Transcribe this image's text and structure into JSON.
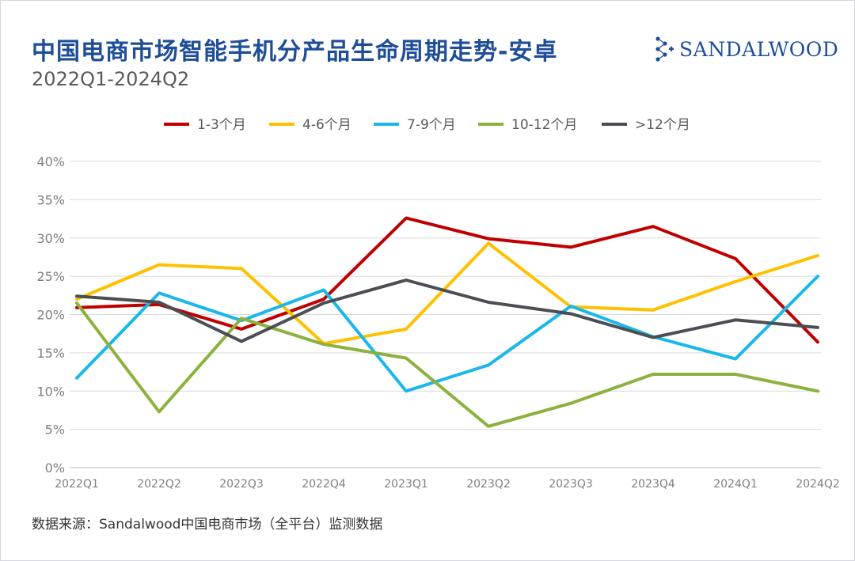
{
  "header": {
    "title": "中国电商市场智能手机分产品生命周期走势-安卓",
    "subtitle": "2022Q1-2024Q2",
    "brand_name": "SANDALWOOD"
  },
  "footer": {
    "source": "数据来源：Sandalwood中国电商市场（全平台）监测数据"
  },
  "chart_data": {
    "type": "line",
    "categories": [
      "2022Q1",
      "2022Q2",
      "2022Q3",
      "2022Q4",
      "2023Q1",
      "2023Q2",
      "2023Q3",
      "2023Q4",
      "2024Q1",
      "2024Q2"
    ],
    "ylim": [
      0,
      40
    ],
    "yticks": [
      0,
      5,
      10,
      15,
      20,
      25,
      30,
      35,
      40
    ],
    "ytick_labels": [
      "0%",
      "5%",
      "10%",
      "15%",
      "20%",
      "25%",
      "30%",
      "35%",
      "40%"
    ],
    "grid": true,
    "legend_position": "top",
    "series": [
      {
        "name": "1-3个月",
        "color": "#c00000",
        "values": [
          20.9,
          21.3,
          18.1,
          22.0,
          32.6,
          29.9,
          28.8,
          31.5,
          27.3,
          16.4
        ]
      },
      {
        "name": "4-6个月",
        "color": "#ffc000",
        "values": [
          22.0,
          26.5,
          26.0,
          16.2,
          18.1,
          29.3,
          21.0,
          20.6,
          24.3,
          27.7
        ]
      },
      {
        "name": "7-9个月",
        "color": "#1ab7ea",
        "values": [
          11.7,
          22.8,
          19.2,
          23.2,
          10.0,
          13.4,
          21.1,
          17.1,
          14.2,
          25.0
        ]
      },
      {
        "name": "10-12个月",
        "color": "#8db13f",
        "values": [
          21.5,
          7.3,
          19.5,
          16.1,
          14.3,
          5.4,
          8.4,
          12.2,
          12.2,
          10.0
        ]
      },
      {
        "name": ">12个月",
        "color": "#4b4f54",
        "values": [
          22.4,
          21.6,
          16.5,
          21.5,
          24.5,
          21.6,
          20.1,
          17.0,
          19.3,
          18.3
        ]
      }
    ]
  }
}
